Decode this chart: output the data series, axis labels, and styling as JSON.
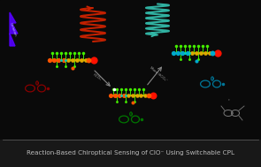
{
  "background_color": "#050505",
  "title_text": "Reaction-Based Chiroptical Sensing of ClO⁻ Using Switchable CPL",
  "title_color": "#bbbbbb",
  "title_fontsize": 5.2,
  "separator_color": "#444444",
  "helix_left_color": "#cc2200",
  "helix_right_color": "#33bbaa",
  "arrow_label_left": "HCO₃⁻",
  "arrow_label_right": "More HCO₃⁻",
  "lightning_color": "#5500ff",
  "lightning_text_color": "#aaaaff",
  "mol_body_color": "#ddaa00",
  "mol_green_color": "#44ee00",
  "mol_orange_color": "#ff5500",
  "mol_red_color": "#ff1100",
  "mol_teal_color": "#00aacc",
  "ring_left_color": "#880000",
  "ring_center_color": "#007700",
  "ring_right_color": "#007799",
  "ring_gray_color": "#777777"
}
